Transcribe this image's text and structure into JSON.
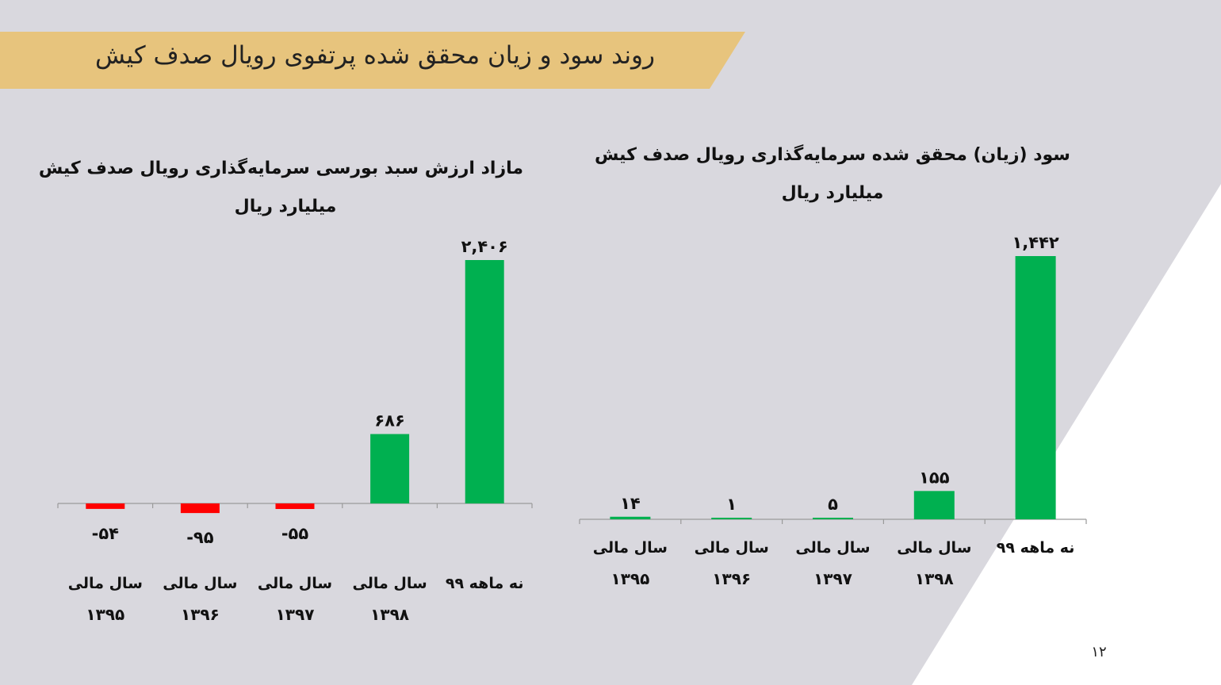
{
  "header": {
    "title": "روند سود و زیان محقق شده پرتفوی رویال صدف کیش"
  },
  "colors": {
    "header_band": "#e7c47d",
    "background": "#d9d8de",
    "positive": "#00b050",
    "negative": "#ff0000",
    "white_triangle": "#ffffff"
  },
  "page_number": "۱۲",
  "chart_data": [
    {
      "type": "bar",
      "title": "مازاد ارزش سبد بورسی سرمایه‌گذاری رویال صدف کیش",
      "subtitle": "میلیارد ریال",
      "categories": [
        {
          "line1": "سال مالی",
          "line2": "۱۳۹۵"
        },
        {
          "line1": "سال مالی",
          "line2": "۱۳۹۶"
        },
        {
          "line1": "سال مالی",
          "line2": "۱۳۹۷"
        },
        {
          "line1": "سال مالی",
          "line2": "۱۳۹۸"
        },
        {
          "line1": "نه ماهه ۹۹",
          "line2": ""
        }
      ],
      "values": [
        -54,
        -95,
        -55,
        686,
        2406
      ],
      "value_labels": [
        "-۵۴",
        "-۹۵",
        "-۵۵",
        "۶۸۶",
        "۲,۴۰۶"
      ],
      "grid": false,
      "legend": "none"
    },
    {
      "type": "bar",
      "title": "سود (زیان) محقق شده سرمایه‌گذاری رویال صدف کیش",
      "subtitle": "میلیارد ریال",
      "categories": [
        {
          "line1": "سال مالی",
          "line2": "۱۳۹۵"
        },
        {
          "line1": "سال مالی",
          "line2": "۱۳۹۶"
        },
        {
          "line1": "سال مالی",
          "line2": "۱۳۹۷"
        },
        {
          "line1": "سال مالی",
          "line2": "۱۳۹۸"
        },
        {
          "line1": "نه ماهه ۹۹",
          "line2": ""
        }
      ],
      "values": [
        14,
        1,
        5,
        155,
        1442
      ],
      "value_labels": [
        "۱۴",
        "۱",
        "۵",
        "۱۵۵",
        "۱,۴۴۲"
      ],
      "grid": false,
      "legend": "none"
    }
  ]
}
